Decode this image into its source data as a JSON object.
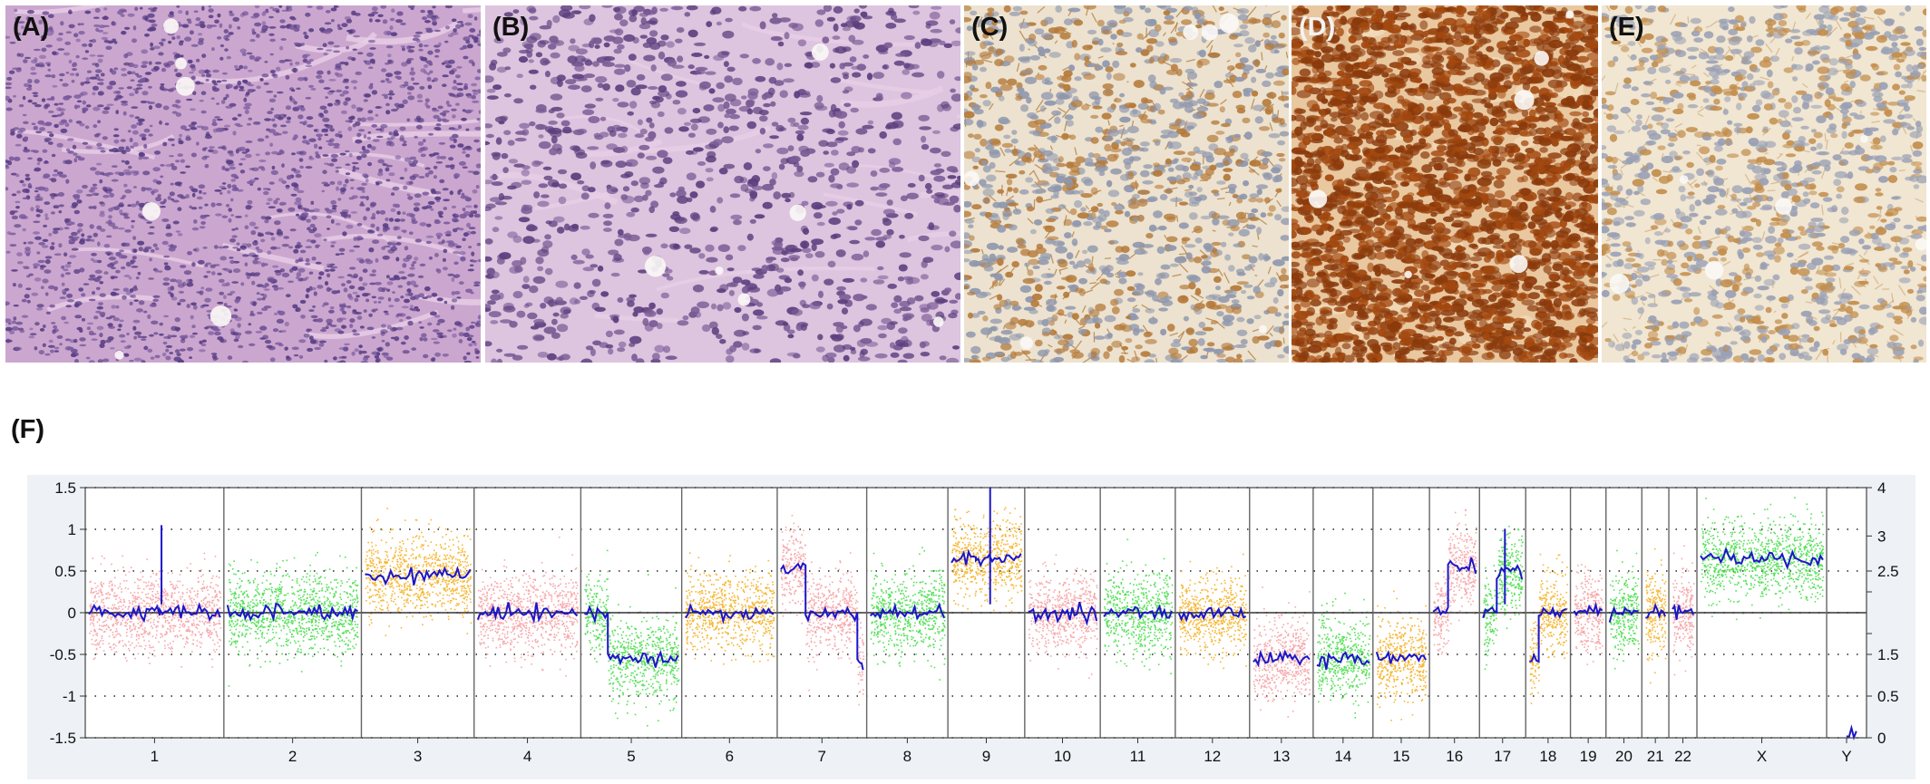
{
  "figure": {
    "panels": [
      {
        "label": "(A)",
        "stain": "H&E, low magnification",
        "base": "#cba7cf",
        "cellColor": "#5a3f86",
        "cellColor2": "#7a5a9e",
        "density": 2600,
        "cellSize": 3
      },
      {
        "label": "(B)",
        "stain": "H&E, high magnification",
        "base": "#ddc4df",
        "cellColor": "#5c3f7e",
        "cellColor2": "#7b5b95",
        "density": 1100,
        "cellSize": 5
      },
      {
        "label": "(C)",
        "stain": "IHC membranous brown",
        "base": "#ece2cf",
        "cellColor": "#8f97ad",
        "cellColor2": "#b57a3a",
        "density": 1200,
        "cellSize": 5
      },
      {
        "label": "(D)",
        "stain": "IHC strong nuclear brown",
        "base": "#e9c79f",
        "cellColor": "#8a3a0c",
        "cellColor2": "#a2480f",
        "density": 2400,
        "cellSize": 6
      },
      {
        "label": "(E)",
        "stain": "IHC weak membranous",
        "base": "#f0e6d2",
        "cellColor": "#9aa0b4",
        "cellColor2": "#c28d4c",
        "density": 1200,
        "cellSize": 5
      }
    ],
    "cnv_label": "(F)"
  },
  "chart_data": {
    "type": "scatter",
    "title": "",
    "xlabel": "",
    "ylabel": "",
    "ylim": [
      -1.5,
      1.5
    ],
    "yticks": [
      "1.5",
      "1",
      "0.5",
      "0",
      "-0.5",
      "-1",
      "-1.5"
    ],
    "y2ticks": [
      "4",
      "3",
      "2.5",
      "1.5",
      "0.5",
      "0"
    ],
    "grid": true,
    "colors": {
      "pink": "#f7a8ab",
      "green": "#57e05a",
      "orange": "#f6b735",
      "segment": "#1c16c8",
      "background": "#eef1f5"
    },
    "chromosomes": [
      {
        "name": "1",
        "width": 0.0765,
        "color": "pink",
        "segments": [
          [
            0,
            0.46,
            0.0
          ],
          [
            0.46,
            0.54,
            0.05
          ],
          [
            0.54,
            1.0,
            0.0
          ]
        ],
        "spike": 1.05
      },
      {
        "name": "2",
        "width": 0.0759,
        "color": "green",
        "segments": [
          [
            0,
            1,
            0.0
          ]
        ]
      },
      {
        "name": "3",
        "width": 0.0622,
        "color": "orange",
        "segments": [
          [
            0,
            1,
            0.45
          ]
        ]
      },
      {
        "name": "4",
        "width": 0.0589,
        "color": "pink",
        "segments": [
          [
            0,
            1,
            0.0
          ]
        ]
      },
      {
        "name": "5",
        "width": 0.0557,
        "color": "green",
        "segments": [
          [
            0,
            0.25,
            0.0
          ],
          [
            0.25,
            1.0,
            -0.55
          ]
        ]
      },
      {
        "name": "6",
        "width": 0.0527,
        "color": "orange",
        "segments": [
          [
            0,
            1,
            0.0
          ]
        ]
      },
      {
        "name": "7",
        "width": 0.0494,
        "color": "pink",
        "segments": [
          [
            0,
            0.3,
            0.55
          ],
          [
            0.3,
            0.93,
            0.0
          ],
          [
            0.93,
            1.0,
            -0.6
          ]
        ]
      },
      {
        "name": "8",
        "width": 0.0448,
        "color": "green",
        "segments": [
          [
            0,
            1,
            0.0
          ]
        ]
      },
      {
        "name": "9",
        "width": 0.0424,
        "color": "orange",
        "segments": [
          [
            0,
            0.35,
            0.65
          ],
          [
            0.35,
            0.55,
            0.65
          ],
          [
            0.55,
            1.0,
            0.65
          ]
        ],
        "spike": 1.5
      },
      {
        "name": "10",
        "width": 0.0417,
        "color": "pink",
        "segments": [
          [
            0,
            1,
            0.0
          ]
        ]
      },
      {
        "name": "11",
        "width": 0.0414,
        "color": "green",
        "segments": [
          [
            0,
            1,
            0.0
          ]
        ]
      },
      {
        "name": "12",
        "width": 0.041,
        "color": "orange",
        "segments": [
          [
            0,
            1,
            0.0
          ]
        ]
      },
      {
        "name": "13",
        "width": 0.0351,
        "color": "pink",
        "segments": [
          [
            0,
            1,
            -0.55
          ]
        ]
      },
      {
        "name": "14",
        "width": 0.033,
        "color": "green",
        "segments": [
          [
            0,
            1,
            -0.55
          ]
        ]
      },
      {
        "name": "15",
        "width": 0.0312,
        "color": "orange",
        "segments": [
          [
            0,
            1,
            -0.55
          ]
        ]
      },
      {
        "name": "16",
        "width": 0.0276,
        "color": "pink",
        "segments": [
          [
            0,
            0.35,
            0.0
          ],
          [
            0.35,
            1.0,
            0.55
          ]
        ]
      },
      {
        "name": "17",
        "width": 0.0255,
        "color": "green",
        "segments": [
          [
            0,
            0.35,
            0.0
          ],
          [
            0.35,
            1.0,
            0.5
          ]
        ],
        "spike": 1.0
      },
      {
        "name": "18",
        "width": 0.0247,
        "color": "orange",
        "segments": [
          [
            0,
            0.25,
            -0.55
          ],
          [
            0.25,
            1.0,
            0.0
          ]
        ]
      },
      {
        "name": "19",
        "width": 0.0196,
        "color": "pink",
        "segments": [
          [
            0,
            1,
            0.0
          ]
        ]
      },
      {
        "name": "20",
        "width": 0.0198,
        "color": "green",
        "segments": [
          [
            0,
            1,
            0.0
          ]
        ]
      },
      {
        "name": "21",
        "width": 0.0149,
        "color": "orange",
        "segments": [
          [
            0,
            1,
            0.0
          ]
        ]
      },
      {
        "name": "22",
        "width": 0.0155,
        "color": "pink",
        "segments": [
          [
            0,
            1,
            0.0
          ]
        ]
      },
      {
        "name": "X",
        "width": 0.0716,
        "color": "green",
        "segments": [
          [
            0,
            1,
            0.65
          ]
        ]
      },
      {
        "name": "Y",
        "width": 0.022,
        "color": "none",
        "segments": [
          [
            0.5,
            0.8,
            -1.45
          ]
        ]
      }
    ]
  }
}
